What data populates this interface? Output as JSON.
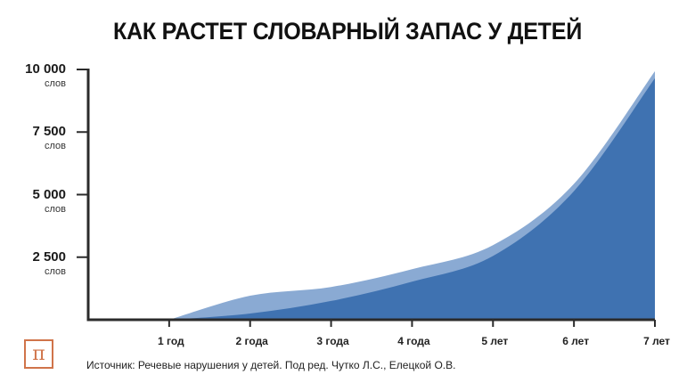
{
  "title": "КАК РАСТЕТ СЛОВАРНЫЙ ЗАПАС У ДЕТЕЙ",
  "y_axis": {
    "unit": "слов",
    "ticks": [
      {
        "label": "10 000",
        "value": 10000
      },
      {
        "label": "7 500",
        "value": 7500
      },
      {
        "label": "5 000",
        "value": 5000
      },
      {
        "label": "2 500",
        "value": 2500
      }
    ]
  },
  "x_axis": {
    "ticks": [
      "1 год",
      "2 года",
      "3 года",
      "4 года",
      "5 лет",
      "6 лет",
      "7 лет"
    ]
  },
  "source": "Источник: Речевые нарушения у детей. Под ред. Чутко Л.С., Елецкой О.В.",
  "logo": {
    "icon": "pi-icon",
    "glyph": "π",
    "color": "#d0744a"
  },
  "colors": {
    "upper_area": "#8aaad3",
    "lower_area": "#3f72b1",
    "axis": "#2b2b2b"
  },
  "chart_data": {
    "type": "area",
    "title": "КАК РАСТЕТ СЛОВАРНЫЙ ЗАПАС У ДЕТЕЙ",
    "xlabel": "",
    "ylabel": "слов",
    "x": [
      0,
      1,
      2,
      3,
      4,
      5,
      6,
      7
    ],
    "categories": [
      "",
      "1 год",
      "2 года",
      "3 года",
      "4 года",
      "5 лет",
      "6 лет",
      "7 лет"
    ],
    "series": [
      {
        "name": "upper bound",
        "color": "#8aaad3",
        "values": [
          null,
          0,
          960,
          1310,
          2020,
          2980,
          5430,
          9930
        ]
      },
      {
        "name": "lower bound",
        "color": "#3f72b1",
        "values": [
          null,
          0,
          250,
          750,
          1520,
          2550,
          5140,
          9650
        ]
      }
    ],
    "ylim": [
      0,
      10000
    ],
    "xlim": [
      0,
      7
    ],
    "yticks": [
      2500,
      5000,
      7500,
      10000
    ],
    "ytick_labels": [
      "2 500 слов",
      "5 000 слов",
      "7 500 слов",
      "10 000 слов"
    ],
    "grid": false,
    "legend": null
  }
}
